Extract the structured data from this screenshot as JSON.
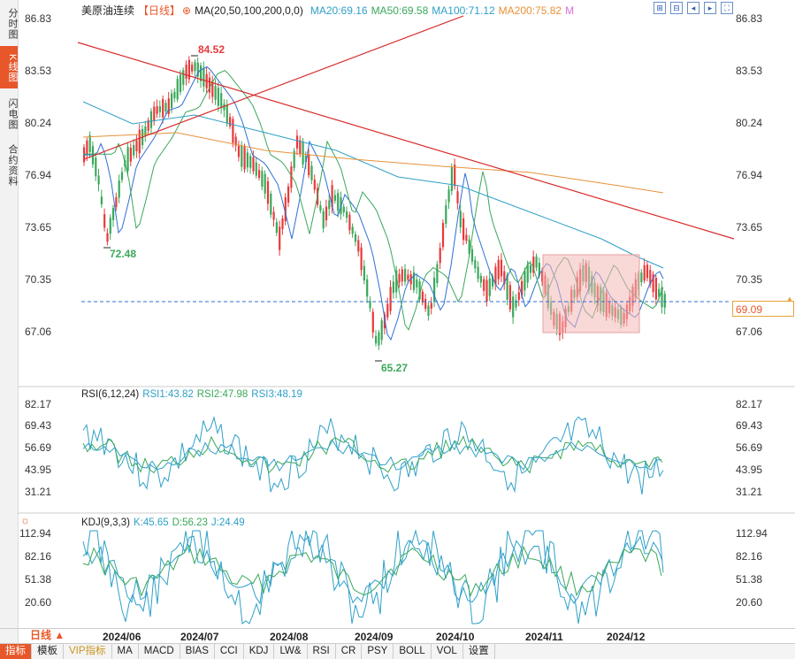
{
  "sidebar": {
    "tabs": [
      {
        "label": "分时图",
        "active": false
      },
      {
        "label": "K线图",
        "active": true
      },
      {
        "label": "闪电图",
        "active": false
      },
      {
        "label": "合约资料",
        "active": false
      }
    ]
  },
  "main_panel": {
    "title": "美原油连续",
    "period_tag": "【日线】",
    "ma_params": "MA(20,50,100,200,0,0)",
    "ma20": "MA20:69.16",
    "ma50": "MA50:69.58",
    "ma100": "MA100:71.12",
    "ma200": "MA200:75.82",
    "extra": "M",
    "y_ticks": [
      "86.83",
      "83.53",
      "80.24",
      "76.94",
      "73.65",
      "70.35",
      "67.06"
    ],
    "high_label": "84.52",
    "low_label1": "72.48",
    "low_label2": "65.27",
    "current_price": "69.09"
  },
  "rsi_panel": {
    "params": "RSI(6,12,24)",
    "rsi1": "RSI1:43.82",
    "rsi2": "RSI2:47.98",
    "rsi3": "RSI3:48.19",
    "y_ticks": [
      "82.17",
      "69.43",
      "56.69",
      "43.95",
      "31.21"
    ]
  },
  "kdj_panel": {
    "params": "KDJ(9,3,3)",
    "k": "K:45.65",
    "d": "D:56.23",
    "j": "J:24.49",
    "y_ticks": [
      "112.94",
      "82.16",
      "51.38",
      "20.60"
    ]
  },
  "toolbar_icons": [
    "zoom-in-icon",
    "zoom-out-icon",
    "pan-left-icon",
    "pan-right-icon",
    "fullscreen-icon"
  ],
  "dates": [
    "2024/06",
    "2024/07",
    "2024/08",
    "2024/09",
    "2024/10",
    "2024/11",
    "2024/12"
  ],
  "period_button": "日线 ▲",
  "bottom_tabs": [
    {
      "label": "指标",
      "active": true
    },
    {
      "label": "模板",
      "active": false
    },
    {
      "label": "VIP指标",
      "active": false,
      "vip": true
    },
    {
      "label": "MA",
      "active": false
    },
    {
      "label": "MACD",
      "active": false
    },
    {
      "label": "BIAS",
      "active": false
    },
    {
      "label": "CCI",
      "active": false
    },
    {
      "label": "KDJ",
      "active": false
    },
    {
      "label": "LW&",
      "active": false
    },
    {
      "label": "RSI",
      "active": false
    },
    {
      "label": "CR",
      "active": false
    },
    {
      "label": "PSY",
      "active": false
    },
    {
      "label": "BOLL",
      "active": false
    },
    {
      "label": "VOL",
      "active": false
    },
    {
      "label": "设置",
      "active": false
    }
  ],
  "colors": {
    "up": "#e8393a",
    "down": "#3aa85a",
    "ma20": "#2f6fd6",
    "ma50": "#3aa85a",
    "ma100": "#2fa0c8",
    "ma200": "#e8913a",
    "trendline": "#d92b2b",
    "highlight_box": "#f4b8b8",
    "accent": "#e8572a"
  }
}
